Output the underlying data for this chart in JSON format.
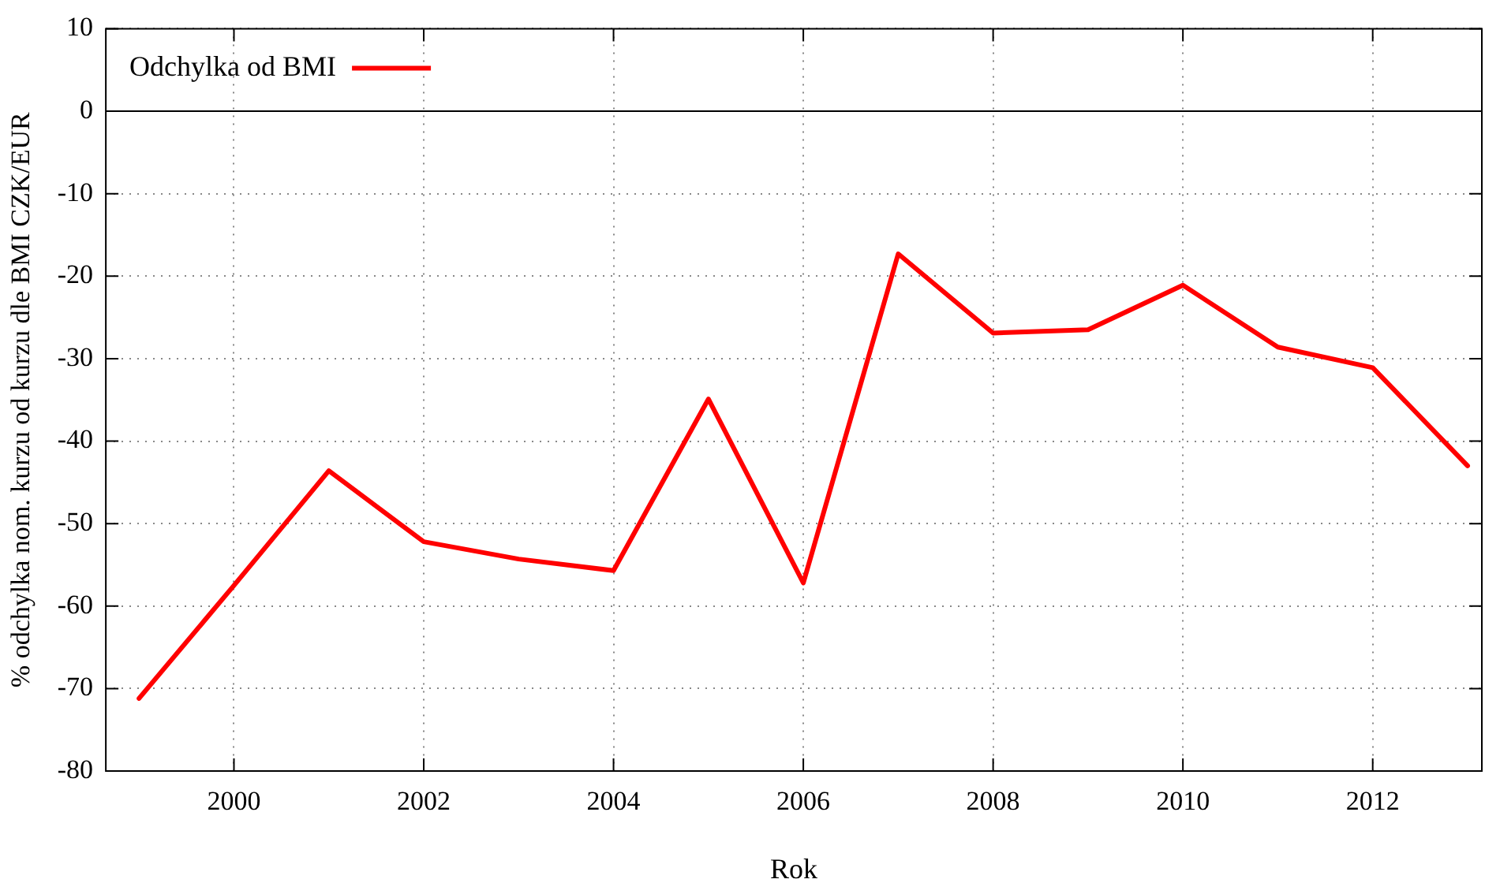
{
  "chart_data": {
    "type": "line",
    "xlabel": "Rok",
    "ylabel": "% odchylka nom. kurzu od kurzu dle BMI CZK/EUR",
    "x": [
      1999,
      2000,
      2001,
      2002,
      2003,
      2004,
      2005,
      2006,
      2007,
      2008,
      2009,
      2010,
      2011,
      2012,
      2013
    ],
    "series": [
      {
        "name": "Odchylka od BMI",
        "color": "#ff0000",
        "values": [
          -71.2,
          -57.5,
          -43.6,
          -52.2,
          -54.3,
          -55.7,
          -34.9,
          -57.2,
          -17.3,
          -26.9,
          -26.5,
          -21.1,
          -28.6,
          -31.1,
          -43.0
        ]
      }
    ],
    "xlim": [
      1998.65,
      2013.15
    ],
    "xticks": [
      2000,
      2002,
      2004,
      2006,
      2008,
      2010,
      2012
    ],
    "ylim": [
      -80,
      10
    ],
    "yticks": [
      -80,
      -70,
      -60,
      -50,
      -40,
      -30,
      -20,
      -10,
      0,
      10
    ],
    "ref_lines": [
      {
        "axis": "y",
        "value": 0,
        "color": "#000000"
      }
    ],
    "grid": true,
    "legend": "top left",
    "marker": "none",
    "line_style": "solid"
  }
}
